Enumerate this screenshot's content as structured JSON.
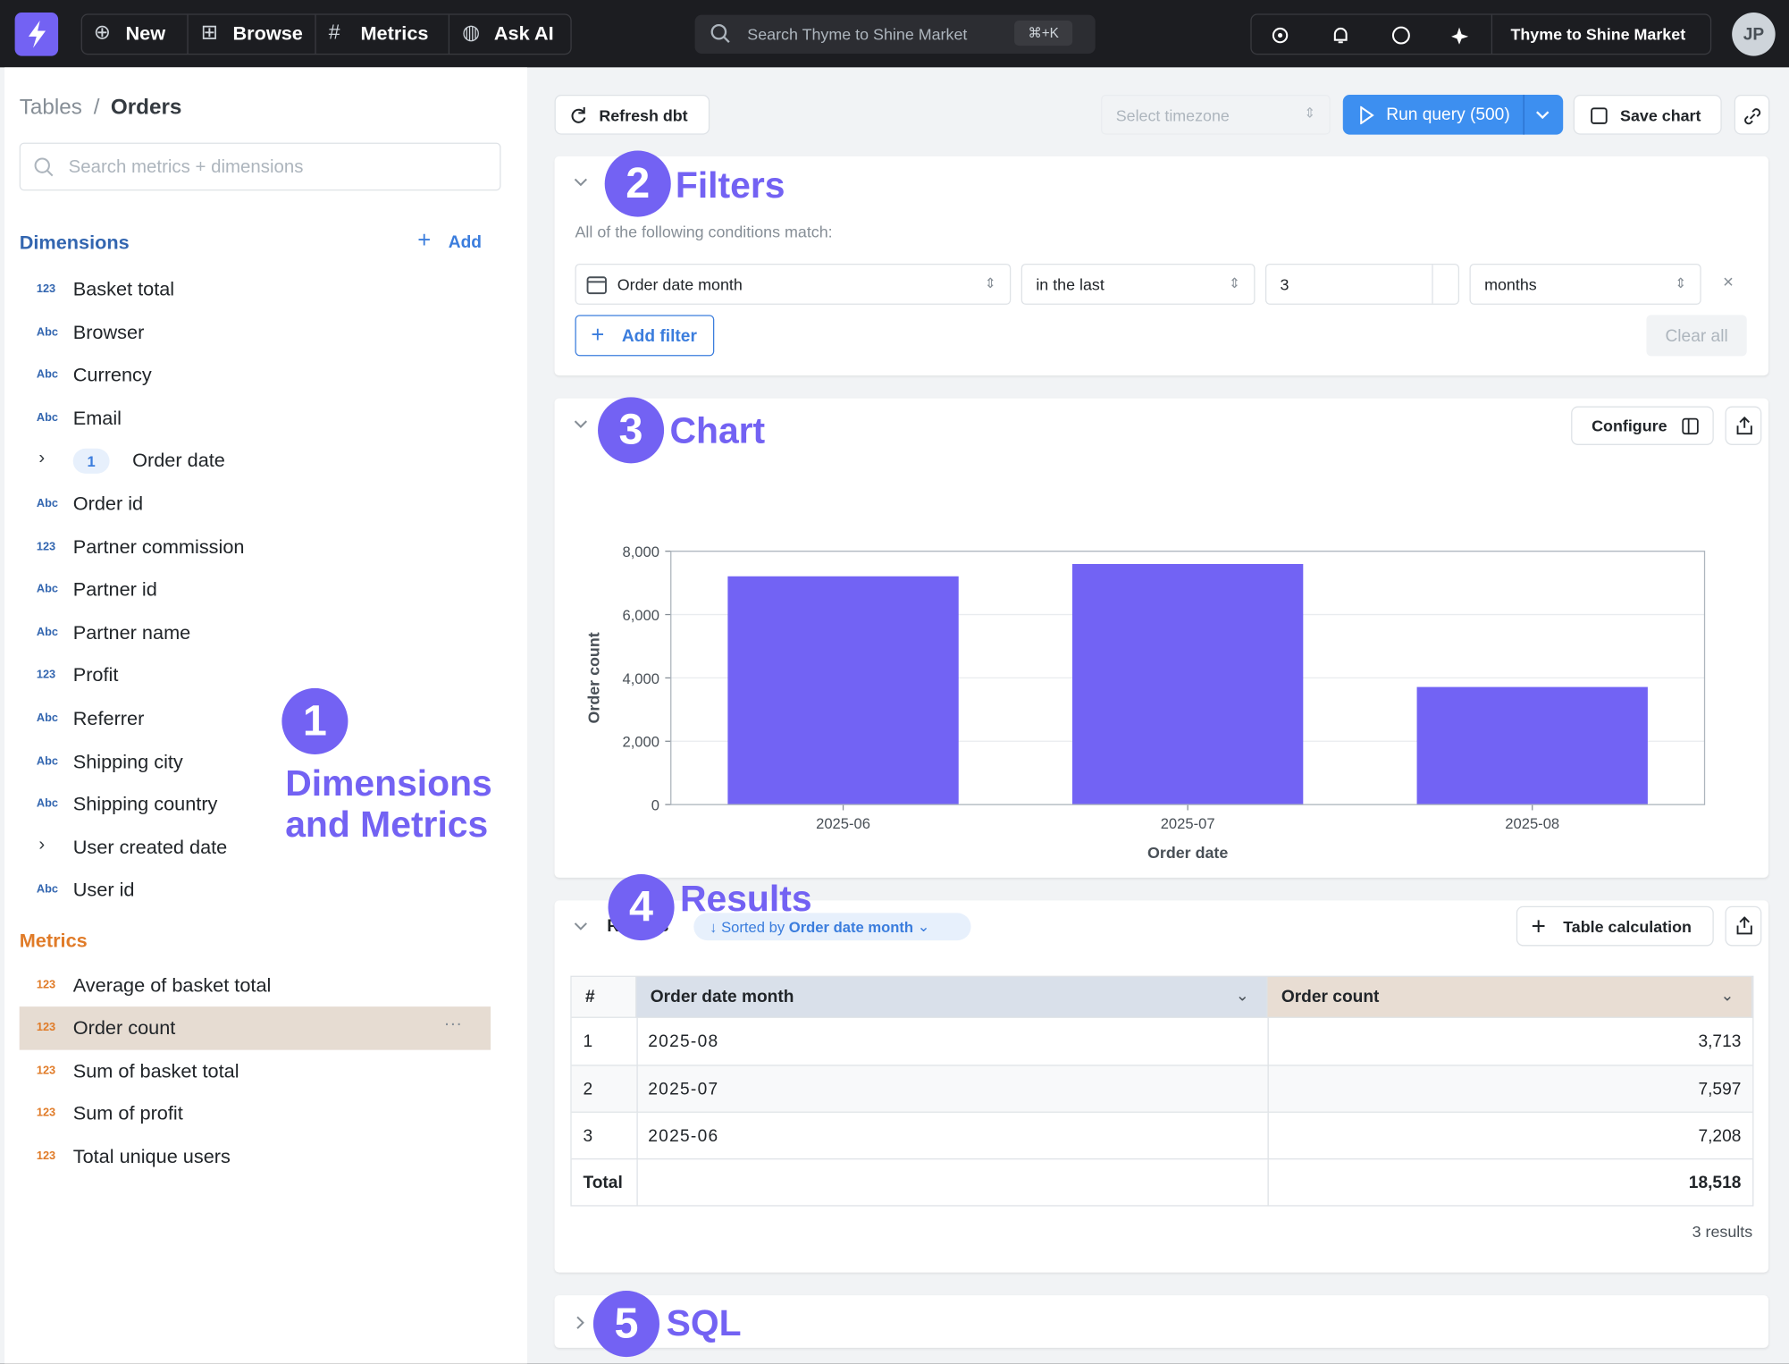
{
  "topbar": {
    "nav": [
      "New",
      "Browse",
      "Metrics",
      "Ask AI"
    ],
    "search": "Search Thyme to Shine Market",
    "shortcut": "⌘+K",
    "workspace": "Thyme to Shine Market",
    "avatar": "JP"
  },
  "sidebar": {
    "breadcrumb": [
      "Tables",
      "Orders"
    ],
    "separator": "/",
    "search": "Search metrics + dimensions",
    "dimensions_title": "Dimensions",
    "add": "Add",
    "dimensions": [
      {
        "type": "123",
        "label": "Basket total"
      },
      {
        "type": "Abc",
        "label": "Browser"
      },
      {
        "type": "Abc",
        "label": "Currency"
      },
      {
        "type": "Abc",
        "label": "Email"
      },
      {
        "label": "Order date",
        "badge": "1",
        "expandable": true
      },
      {
        "type": "Abc",
        "label": "Order id"
      },
      {
        "type": "123",
        "label": "Partner commission"
      },
      {
        "type": "Abc",
        "label": "Partner id"
      },
      {
        "type": "Abc",
        "label": "Partner name"
      },
      {
        "type": "123",
        "label": "Profit"
      },
      {
        "type": "Abc",
        "label": "Referrer"
      },
      {
        "type": "Abc",
        "label": "Shipping city"
      },
      {
        "type": "Abc",
        "label": "Shipping country"
      },
      {
        "label": "User created date",
        "expandable": true
      },
      {
        "type": "Abc",
        "label": "User id"
      }
    ],
    "metrics_title": "Metrics",
    "metrics": [
      {
        "type": "123",
        "label": "Average of basket total"
      },
      {
        "type": "123",
        "label": "Order count",
        "selected": true,
        "menu": "···"
      },
      {
        "type": "123",
        "label": "Sum of basket total"
      },
      {
        "type": "123",
        "label": "Sum of profit"
      },
      {
        "type": "123",
        "label": "Total unique users"
      }
    ]
  },
  "toolbar": {
    "refresh": "Refresh dbt",
    "timezone": "Select timezone",
    "run": "Run query (500)",
    "save": "Save chart"
  },
  "filters": {
    "intro": "All of the following conditions match:",
    "field": "Order date month",
    "operator": "in the last",
    "value": "3",
    "unit": "months",
    "add": "Add filter",
    "clear": "Clear all"
  },
  "chart_card": {
    "configure": "Configure"
  },
  "chart_data": {
    "type": "bar",
    "categories": [
      "2025-06",
      "2025-07",
      "2025-08"
    ],
    "values": [
      7208,
      7597,
      3713
    ],
    "color": "#7263f4",
    "ylim": [
      0,
      8000
    ],
    "yticks": [
      0,
      {
        "value": 2000,
        "label": "2,000"
      },
      {
        "value": 4000,
        "label": "4,000"
      },
      {
        "value": 6000,
        "label": "6,000"
      },
      {
        "value": 8000,
        "label": "8,000"
      }
    ],
    "x_label": "Order date",
    "y_label": "Order count",
    "grid": true
  },
  "results": {
    "title": "Results",
    "sorted_prefix": "Sorted by",
    "sorted_field": "Order date month",
    "table_calc": "Table calculation",
    "columns": [
      "#",
      "Order date month",
      "Order count"
    ],
    "rows": [
      [
        "1",
        "2025-08",
        "3,713"
      ],
      [
        "2",
        "2025-07",
        "7,597"
      ],
      [
        "3",
        "2025-06",
        "7,208"
      ]
    ],
    "total_label": "Total",
    "total_value": "18,518",
    "count": "3 results"
  },
  "annotations": [
    {
      "number": "1",
      "label": "Dimensions and Metrics"
    },
    {
      "number": "2",
      "label": "Filters"
    },
    {
      "number": "3",
      "label": "Chart"
    },
    {
      "number": "4",
      "label": "Results"
    },
    {
      "number": "5",
      "label": "SQL"
    }
  ]
}
